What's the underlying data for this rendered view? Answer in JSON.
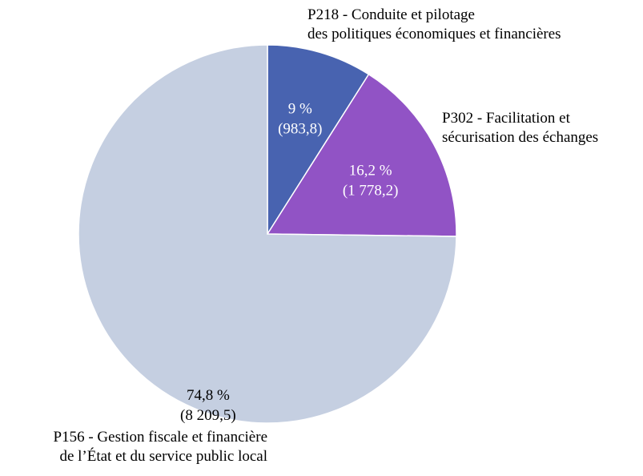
{
  "chart_data": {
    "type": "pie",
    "start_angle_deg": 0,
    "direction": "clockwise",
    "slices": [
      {
        "category_line1": "P218 - Conduite et pilotage",
        "category_line2": "des politiques économiques et financières",
        "percent": 9.0,
        "percent_label": "9 %",
        "value": 983.8,
        "value_label": "(983,8)",
        "color": "#4863b0",
        "label_color": "#ffffff"
      },
      {
        "category_line1": "P302 - Facilitation et",
        "category_line2": "sécurisation des échanges",
        "percent": 16.2,
        "percent_label": "16,2 %",
        "value": 1778.2,
        "value_label": "(1 778,2)",
        "color": "#9153c5",
        "label_color": "#ffffff"
      },
      {
        "category_line1": "P156 - Gestion fiscale et financière",
        "category_line2": "de l’État et du service public local",
        "percent": 74.8,
        "percent_label": "74,8 %",
        "value": 8209.5,
        "value_label": "(8 209,5)",
        "color": "#c5cfe1",
        "label_color": "#000000"
      }
    ]
  }
}
